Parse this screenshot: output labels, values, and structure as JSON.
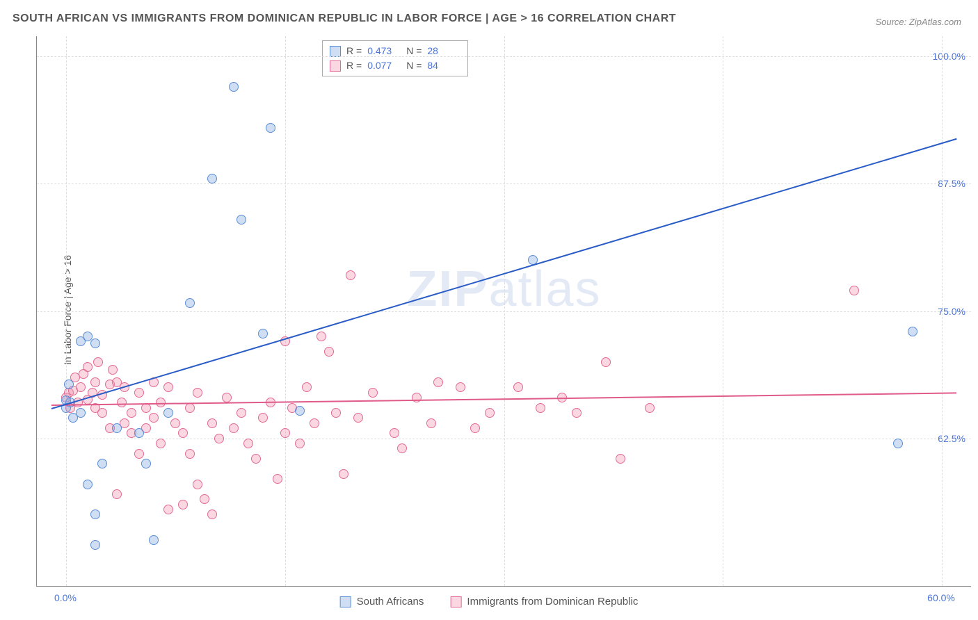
{
  "title": "SOUTH AFRICAN VS IMMIGRANTS FROM DOMINICAN REPUBLIC IN LABOR FORCE | AGE > 16 CORRELATION CHART",
  "source": "Source: ZipAtlas.com",
  "ylabel": "In Labor Force | Age > 16",
  "watermark": {
    "bold": "ZIP",
    "thin": "atlas"
  },
  "chart": {
    "type": "scatter",
    "background_color": "#ffffff",
    "grid_color": "#dddddd",
    "axis_color": "#888888",
    "x_domain": [
      -2,
      62
    ],
    "y_domain": [
      48,
      102
    ],
    "x_ticks": [
      {
        "value": 0,
        "label": "0.0%"
      },
      {
        "value": 60,
        "label": "60.0%"
      }
    ],
    "y_ticks": [
      {
        "value": 62.5,
        "label": "62.5%"
      },
      {
        "value": 75.0,
        "label": "75.0%"
      },
      {
        "value": 87.5,
        "label": "87.5%"
      },
      {
        "value": 100.0,
        "label": "100.0%"
      }
    ],
    "x_gridlines": [
      0,
      15,
      30,
      45,
      60
    ],
    "series": [
      {
        "name": "South Africans",
        "color_fill": "rgba(120,160,220,0.35)",
        "color_stroke": "#5b8ed6",
        "marker_size": 14,
        "trend_color": "#2a5cc7",
        "trend": {
          "x1": -1,
          "y1": 65.5,
          "x2": 61,
          "y2": 92.0
        },
        "R": "0.473",
        "N": "28",
        "points": [
          [
            0,
            65.5
          ],
          [
            0,
            66.2
          ],
          [
            0.2,
            67.8
          ],
          [
            0.3,
            66.0
          ],
          [
            0.5,
            64.5
          ],
          [
            1.0,
            72.0
          ],
          [
            1.0,
            65.0
          ],
          [
            1.5,
            58.0
          ],
          [
            1.5,
            72.5
          ],
          [
            2.0,
            71.8
          ],
          [
            2.0,
            55.0
          ],
          [
            2.0,
            52.0
          ],
          [
            2.5,
            60.0
          ],
          [
            3.5,
            63.5
          ],
          [
            5.0,
            63.0
          ],
          [
            5.5,
            60.0
          ],
          [
            6.0,
            52.5
          ],
          [
            7.0,
            65.0
          ],
          [
            8.5,
            75.8
          ],
          [
            10.0,
            88.0
          ],
          [
            11.5,
            97.0
          ],
          [
            12.0,
            84.0
          ],
          [
            13.5,
            72.8
          ],
          [
            14.0,
            93.0
          ],
          [
            16.0,
            65.2
          ],
          [
            32.0,
            80.0
          ],
          [
            57.0,
            62.0
          ],
          [
            58.0,
            73.0
          ]
        ]
      },
      {
        "name": "Immigrants from Dominican Republic",
        "color_fill": "rgba(240,140,170,0.35)",
        "color_stroke": "#e26b95",
        "marker_size": 14,
        "trend_color": "#e05a8a",
        "trend": {
          "x1": -1,
          "y1": 65.8,
          "x2": 61,
          "y2": 67.0
        },
        "R": "0.077",
        "N": "84",
        "points": [
          [
            0,
            66.5
          ],
          [
            0.2,
            67.0
          ],
          [
            0.3,
            65.5
          ],
          [
            0.5,
            67.2
          ],
          [
            0.6,
            68.5
          ],
          [
            0.8,
            66.0
          ],
          [
            1.0,
            67.5
          ],
          [
            1.2,
            68.8
          ],
          [
            1.5,
            66.3
          ],
          [
            1.5,
            69.5
          ],
          [
            1.8,
            67.0
          ],
          [
            2.0,
            65.5
          ],
          [
            2.0,
            68.0
          ],
          [
            2.2,
            70.0
          ],
          [
            2.5,
            66.8
          ],
          [
            2.5,
            65.0
          ],
          [
            3.0,
            67.8
          ],
          [
            3.0,
            63.5
          ],
          [
            3.2,
            69.2
          ],
          [
            3.5,
            68.0
          ],
          [
            3.5,
            57.0
          ],
          [
            3.8,
            66.0
          ],
          [
            4.0,
            67.5
          ],
          [
            4.0,
            64.0
          ],
          [
            4.5,
            65.0
          ],
          [
            4.5,
            63.0
          ],
          [
            5.0,
            67.0
          ],
          [
            5.0,
            61.0
          ],
          [
            5.5,
            65.5
          ],
          [
            5.5,
            63.5
          ],
          [
            6.0,
            64.5
          ],
          [
            6.0,
            68.0
          ],
          [
            6.5,
            62.0
          ],
          [
            6.5,
            66.0
          ],
          [
            7.0,
            55.5
          ],
          [
            7.0,
            67.5
          ],
          [
            7.5,
            64.0
          ],
          [
            8.0,
            63.0
          ],
          [
            8.0,
            56.0
          ],
          [
            8.5,
            65.5
          ],
          [
            8.5,
            61.0
          ],
          [
            9.0,
            67.0
          ],
          [
            9.0,
            58.0
          ],
          [
            9.5,
            56.5
          ],
          [
            10.0,
            64.0
          ],
          [
            10.0,
            55.0
          ],
          [
            10.5,
            62.5
          ],
          [
            11.0,
            66.5
          ],
          [
            11.5,
            63.5
          ],
          [
            12.0,
            65.0
          ],
          [
            12.5,
            62.0
          ],
          [
            13.0,
            60.5
          ],
          [
            13.5,
            64.5
          ],
          [
            14.0,
            66.0
          ],
          [
            14.5,
            58.5
          ],
          [
            15.0,
            63.0
          ],
          [
            15.0,
            72.0
          ],
          [
            15.5,
            65.5
          ],
          [
            16.0,
            62.0
          ],
          [
            16.5,
            67.5
          ],
          [
            17.0,
            64.0
          ],
          [
            17.5,
            72.5
          ],
          [
            18.0,
            71.0
          ],
          [
            18.5,
            65.0
          ],
          [
            19.0,
            59.0
          ],
          [
            19.5,
            78.5
          ],
          [
            20.0,
            64.5
          ],
          [
            21.0,
            67.0
          ],
          [
            22.5,
            63.0
          ],
          [
            23.0,
            61.5
          ],
          [
            24.0,
            66.5
          ],
          [
            25.0,
            64.0
          ],
          [
            25.5,
            68.0
          ],
          [
            27.0,
            67.5
          ],
          [
            28.0,
            63.5
          ],
          [
            29.0,
            65.0
          ],
          [
            31.0,
            67.5
          ],
          [
            32.5,
            65.5
          ],
          [
            34.0,
            66.5
          ],
          [
            35.0,
            65.0
          ],
          [
            37.0,
            70.0
          ],
          [
            38.0,
            60.5
          ],
          [
            40.0,
            65.5
          ],
          [
            54.0,
            77.0
          ]
        ]
      }
    ]
  },
  "legend_top_labels": {
    "R": "R =",
    "N": "N ="
  },
  "legend_bottom": [
    "South Africans",
    "Immigrants from Dominican Republic"
  ],
  "tick_label_color": "#4a74d8"
}
